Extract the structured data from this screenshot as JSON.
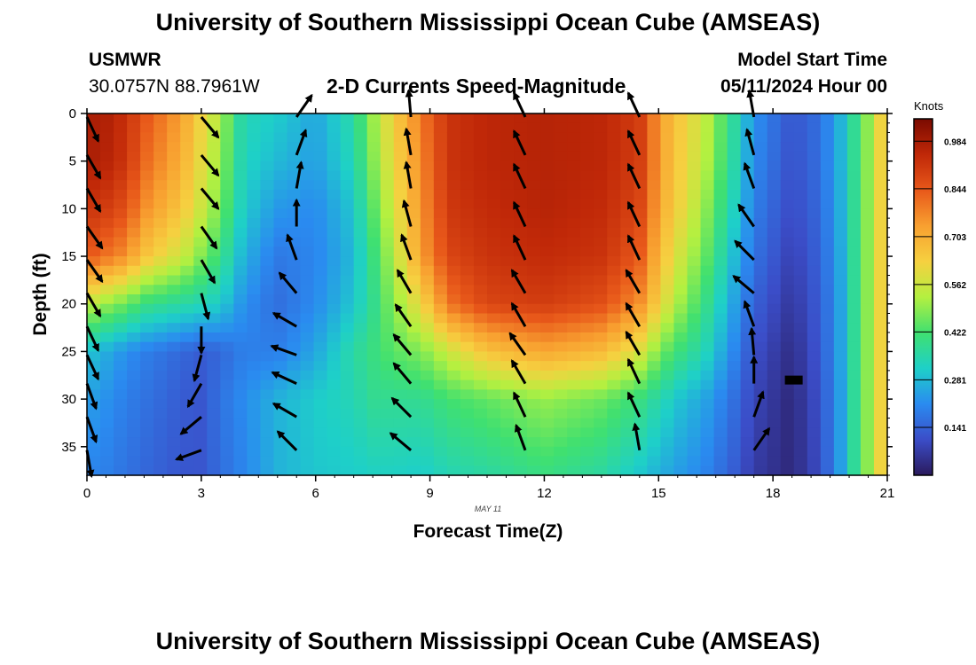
{
  "header": {
    "title": "University of Southern Mississippi Ocean Cube (AMSEAS)",
    "station": "USMWR",
    "coordinates": "30.0757N  88.7961W",
    "subtitle": "2-D Currents Speed-Magnitude",
    "model_start_label": "Model Start Time",
    "model_start_value": "05/11/2024 Hour 00"
  },
  "footer": {
    "title": "University of Southern Mississippi Ocean Cube (AMSEAS)"
  },
  "chart_data": {
    "type": "heatmap",
    "title": "2-D Currents Speed-Magnitude",
    "xlabel": "Forecast Time(Z)",
    "ylabel": "Depth (ft)",
    "date_label": "MAY 11",
    "xlim": [
      0,
      21
    ],
    "ylim": [
      38,
      0
    ],
    "x_ticks": [
      0,
      3,
      6,
      9,
      12,
      15,
      18,
      21
    ],
    "y_ticks": [
      0,
      5,
      10,
      15,
      20,
      25,
      30,
      35
    ],
    "colorbar": {
      "label": "Knots",
      "range": [
        0,
        1.05
      ],
      "ticks": [
        "0.984",
        "0.844",
        "0.703",
        "0.562",
        "0.422",
        "0.281",
        "0.141"
      ],
      "tick_values": [
        0.984,
        0.844,
        0.703,
        0.562,
        0.422,
        0.281,
        0.141
      ],
      "colors": [
        "#2a1a5c",
        "#3b4dc8",
        "#2a8bf0",
        "#1ed0c8",
        "#40e070",
        "#b4f040",
        "#f6d040",
        "#f8a030",
        "#e8581a",
        "#c02808",
        "#7a0a00"
      ]
    },
    "speed_profiles": {
      "depths": [
        0,
        5,
        10,
        15,
        20,
        25,
        30,
        38
      ],
      "times": [
        {
          "t": 0,
          "v": [
            0.98,
            0.98,
            0.92,
            0.85,
            0.55,
            0.3,
            0.24,
            0.2
          ]
        },
        {
          "t": 0.5,
          "v": [
            0.97,
            0.96,
            0.9,
            0.8,
            0.5,
            0.26,
            0.22,
            0.19
          ]
        },
        {
          "t": 1,
          "v": [
            0.93,
            0.92,
            0.86,
            0.76,
            0.46,
            0.22,
            0.19,
            0.17
          ]
        },
        {
          "t": 1.5,
          "v": [
            0.85,
            0.82,
            0.76,
            0.66,
            0.4,
            0.19,
            0.17,
            0.15
          ]
        },
        {
          "t": 2.5,
          "v": [
            0.73,
            0.7,
            0.65,
            0.56,
            0.36,
            0.15,
            0.13,
            0.12
          ]
        },
        {
          "t": 3,
          "v": [
            0.62,
            0.6,
            0.56,
            0.48,
            0.34,
            0.13,
            0.12,
            0.12
          ]
        },
        {
          "t": 3.5,
          "v": [
            0.52,
            0.5,
            0.47,
            0.4,
            0.31,
            0.15,
            0.17,
            0.16
          ]
        },
        {
          "t": 4.1,
          "v": [
            0.34,
            0.33,
            0.31,
            0.27,
            0.22,
            0.19,
            0.21,
            0.2
          ]
        },
        {
          "t": 5,
          "v": [
            0.31,
            0.28,
            0.23,
            0.18,
            0.16,
            0.19,
            0.27,
            0.27
          ]
        },
        {
          "t": 6,
          "v": [
            0.25,
            0.24,
            0.21,
            0.2,
            0.21,
            0.25,
            0.31,
            0.3
          ]
        },
        {
          "t": 7,
          "v": [
            0.36,
            0.34,
            0.3,
            0.28,
            0.3,
            0.36,
            0.34,
            0.31
          ]
        },
        {
          "t": 7.5,
          "v": [
            0.5,
            0.48,
            0.44,
            0.4,
            0.38,
            0.4,
            0.38,
            0.32
          ]
        },
        {
          "t": 8,
          "v": [
            0.62,
            0.6,
            0.56,
            0.52,
            0.48,
            0.44,
            0.38,
            0.32
          ]
        },
        {
          "t": 8.8,
          "v": [
            0.8,
            0.78,
            0.76,
            0.74,
            0.62,
            0.48,
            0.38,
            0.31
          ]
        },
        {
          "t": 9.5,
          "v": [
            0.92,
            0.92,
            0.91,
            0.88,
            0.8,
            0.56,
            0.42,
            0.34
          ]
        },
        {
          "t": 10.5,
          "v": [
            0.95,
            0.95,
            0.94,
            0.92,
            0.88,
            0.66,
            0.45,
            0.36
          ]
        },
        {
          "t": 12,
          "v": [
            0.96,
            0.96,
            0.96,
            0.94,
            0.9,
            0.72,
            0.5,
            0.4
          ]
        },
        {
          "t": 13.5,
          "v": [
            0.95,
            0.95,
            0.94,
            0.92,
            0.86,
            0.68,
            0.46,
            0.36
          ]
        },
        {
          "t": 14.5,
          "v": [
            0.9,
            0.9,
            0.88,
            0.84,
            0.76,
            0.58,
            0.4,
            0.3
          ]
        },
        {
          "t": 15.1,
          "v": [
            0.72,
            0.72,
            0.7,
            0.66,
            0.6,
            0.46,
            0.34,
            0.26
          ]
        },
        {
          "t": 15.6,
          "v": [
            0.64,
            0.63,
            0.61,
            0.56,
            0.5,
            0.4,
            0.29,
            0.23
          ]
        },
        {
          "t": 16.2,
          "v": [
            0.55,
            0.54,
            0.5,
            0.46,
            0.4,
            0.34,
            0.25,
            0.2
          ]
        },
        {
          "t": 17,
          "v": [
            0.36,
            0.35,
            0.32,
            0.28,
            0.24,
            0.2,
            0.16,
            0.13
          ]
        },
        {
          "t": 17.5,
          "v": [
            0.22,
            0.21,
            0.19,
            0.17,
            0.14,
            0.11,
            0.09,
            0.07
          ]
        },
        {
          "t": 18.5,
          "v": [
            0.12,
            0.11,
            0.1,
            0.08,
            0.06,
            0.04,
            0.03,
            0.03
          ]
        },
        {
          "t": 19.2,
          "v": [
            0.16,
            0.16,
            0.15,
            0.14,
            0.13,
            0.12,
            0.11,
            0.1
          ]
        },
        {
          "t": 19.7,
          "v": [
            0.25,
            0.25,
            0.24,
            0.23,
            0.22,
            0.22,
            0.21,
            0.21
          ]
        },
        {
          "t": 20.2,
          "v": [
            0.4,
            0.4,
            0.4,
            0.4,
            0.4,
            0.4,
            0.4,
            0.4
          ]
        },
        {
          "t": 20.7,
          "v": [
            0.56,
            0.56,
            0.56,
            0.56,
            0.56,
            0.56,
            0.56,
            0.56
          ]
        },
        {
          "t": 21,
          "v": [
            0.7,
            0.7,
            0.7,
            0.7,
            0.7,
            0.7,
            0.7,
            0.7
          ]
        }
      ]
    },
    "vectors": {
      "depths": [
        0,
        4,
        7.5,
        11.5,
        15,
        18.5,
        22,
        25,
        28,
        31.5,
        35
      ],
      "columns": [
        {
          "t": 0,
          "dirs": [
            155,
            150,
            150,
            145,
            145,
            150,
            155,
            155,
            160,
            160,
            170
          ]
        },
        {
          "t": 3,
          "dirs": [
            140,
            140,
            140,
            145,
            150,
            165,
            180,
            195,
            210,
            230,
            250
          ]
        },
        {
          "t": 5.5,
          "dirs": [
            35,
            20,
            10,
            0,
            340,
            320,
            300,
            290,
            295,
            300,
            315
          ]
        },
        {
          "t": 8.5,
          "dirs": [
            355,
            350,
            350,
            345,
            340,
            330,
            325,
            320,
            320,
            315,
            310
          ]
        },
        {
          "t": 11.5,
          "dirs": [
            335,
            335,
            335,
            335,
            335,
            330,
            330,
            325,
            330,
            335,
            340
          ]
        },
        {
          "t": 14.5,
          "dirs": [
            335,
            335,
            335,
            335,
            335,
            330,
            330,
            330,
            335,
            335,
            350
          ]
        },
        {
          "t": 17.5,
          "dirs": [
            350,
            345,
            340,
            325,
            315,
            310,
            340,
            355,
            0,
            20,
            35
          ]
        }
      ]
    },
    "marker": {
      "t": 18.5,
      "depth": 28
    }
  }
}
